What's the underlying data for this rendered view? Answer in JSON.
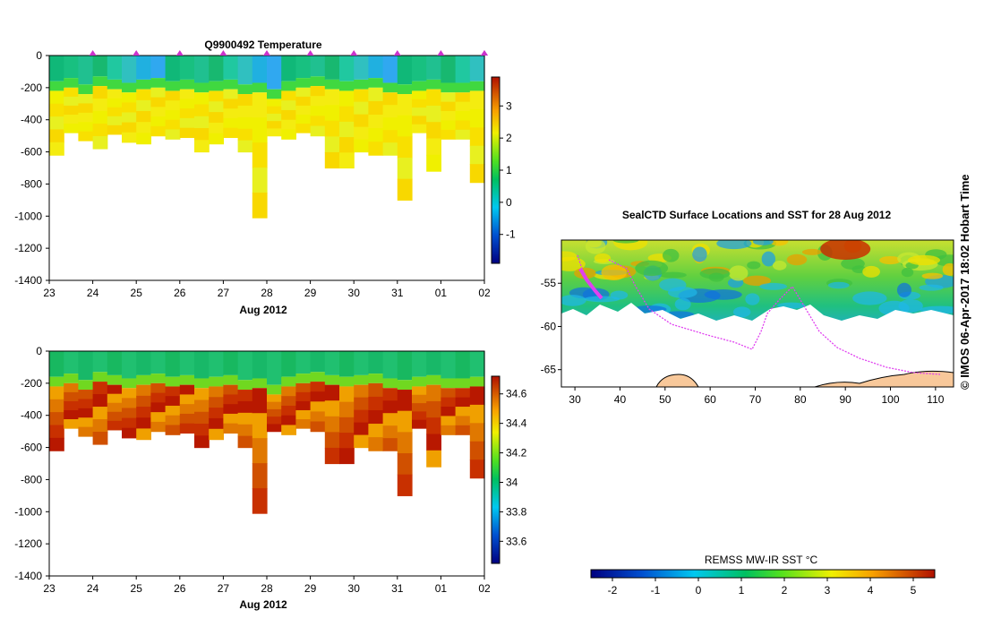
{
  "chart_data": [
    {
      "id": "temperature",
      "type": "heatmap",
      "title": "Q9900492  Temperature",
      "xlabel": "Aug 2012",
      "x_ticks": [
        "23",
        "24",
        "25",
        "26",
        "27",
        "28",
        "29",
        "30",
        "31",
        "01",
        "02"
      ],
      "y_ticks": [
        0,
        -200,
        -400,
        -600,
        -800,
        -1000,
        -1200,
        -1400
      ],
      "ylim": [
        -1400,
        0
      ],
      "colorbar": {
        "min": -1.9,
        "max": 3.9,
        "ticks": [
          -1,
          0,
          1,
          2,
          3
        ]
      },
      "profile_markers_days": [
        1,
        2,
        3,
        4,
        5,
        6,
        7,
        8,
        9,
        10,
        10.0
      ]
    },
    {
      "id": "salinity",
      "type": "heatmap",
      "title": "",
      "xlabel": "Aug 2012",
      "x_ticks": [
        "23",
        "24",
        "25",
        "26",
        "27",
        "28",
        "29",
        "30",
        "31",
        "01",
        "02"
      ],
      "y_ticks": [
        0,
        -200,
        -400,
        -600,
        -800,
        -1000,
        -1200,
        -1400
      ],
      "ylim": [
        -1400,
        0
      ],
      "colorbar": {
        "min": 33.45,
        "max": 34.72,
        "ticks": [
          "33.6",
          "33.8",
          "34",
          "34.2",
          "34.4",
          "34.6"
        ]
      }
    },
    {
      "id": "map",
      "type": "heatmap",
      "title": "SealCTD Surface Locations and SST for 28 Aug 2012",
      "x_ticks": [
        "30",
        "40",
        "50",
        "60",
        "70",
        "80",
        "90",
        "100",
        "110"
      ],
      "xlim": [
        27,
        114
      ],
      "y_ticks": [
        "-55",
        "-60",
        "-65"
      ],
      "ylim": [
        -67,
        -50
      ],
      "colorbar": {
        "label": "REMSS MW-IR SST °C",
        "min": -2.5,
        "max": 5.5,
        "ticks": [
          "-2",
          "-1",
          "0",
          "1",
          "2",
          "3",
          "4",
          "5"
        ]
      }
    }
  ],
  "profiles": {
    "start_day": 23,
    "count": 30,
    "max_depths": [
      620,
      480,
      530,
      580,
      490,
      540,
      550,
      500,
      520,
      510,
      600,
      550,
      510,
      600,
      1010,
      500,
      520,
      480,
      500,
      700,
      700,
      600,
      620,
      620,
      900,
      480,
      720,
      520,
      520,
      790
    ],
    "mixed_layer_depths": [
      180,
      160,
      200,
      150,
      170,
      190,
      170,
      160,
      180,
      170,
      190,
      180,
      170,
      200,
      190,
      230,
      180,
      160,
      150,
      170,
      180,
      170,
      160,
      190,
      200,
      180,
      170,
      190,
      190,
      180
    ]
  },
  "copyright_text": "© IMOS 06-Apr-2017 18:02 Hobart Time",
  "colors": {
    "land": "#f8c89a",
    "track": "#e040f0",
    "marker": "#cc33cc"
  }
}
